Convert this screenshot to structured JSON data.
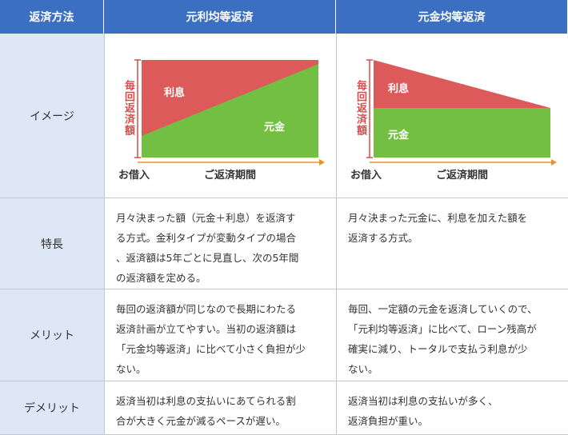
{
  "header": [
    "返済方法",
    "元利均等返済",
    "元金均等返済"
  ],
  "image_row": {
    "label": "イメージ",
    "diagrams": [
      {
        "y_label": "毎回返済額",
        "interest": "利息",
        "principal": "元金",
        "start": "お借入",
        "period": "ご返済期間"
      },
      {
        "y_label": "毎回返済額",
        "interest": "利息",
        "principal": "元金",
        "start": "お借入",
        "period": "ご返済期間"
      }
    ]
  },
  "rows": [
    {
      "label": "特長",
      "cells": [
        [
          "月々決まった額（元金＋利息）を返済す",
          "る方式。金利タイプが変動タイプの場合",
          "、返済額は5年ごとに見直し、次の5年間",
          "の返済額を定める。"
        ],
        [
          "月々決まった元金に、利息を加えた額を",
          "返済する方式。"
        ]
      ]
    },
    {
      "label": "メリット",
      "cells": [
        [
          "毎回の返済額が同じなので長期にわたる",
          "返済計画が立てやすい。当初の返済額は",
          "「元金均等返済」に比べて小さく負担が少",
          "ない。"
        ],
        [
          "毎回、一定額の元金を返済していくので、",
          "「元利均等返済」に比べて、ローン残高が",
          "確実に減り、トータルで支払う利息が少",
          "ない。"
        ]
      ]
    },
    {
      "label": "デメリット",
      "cells": [
        [
          "返済当初は利息の支払いにあてられる割",
          "合が大きく元金が減るペースが遅い。"
        ],
        [
          "返済当初は利息の支払いが多く、",
          "返済負担が重い。"
        ]
      ]
    }
  ]
}
